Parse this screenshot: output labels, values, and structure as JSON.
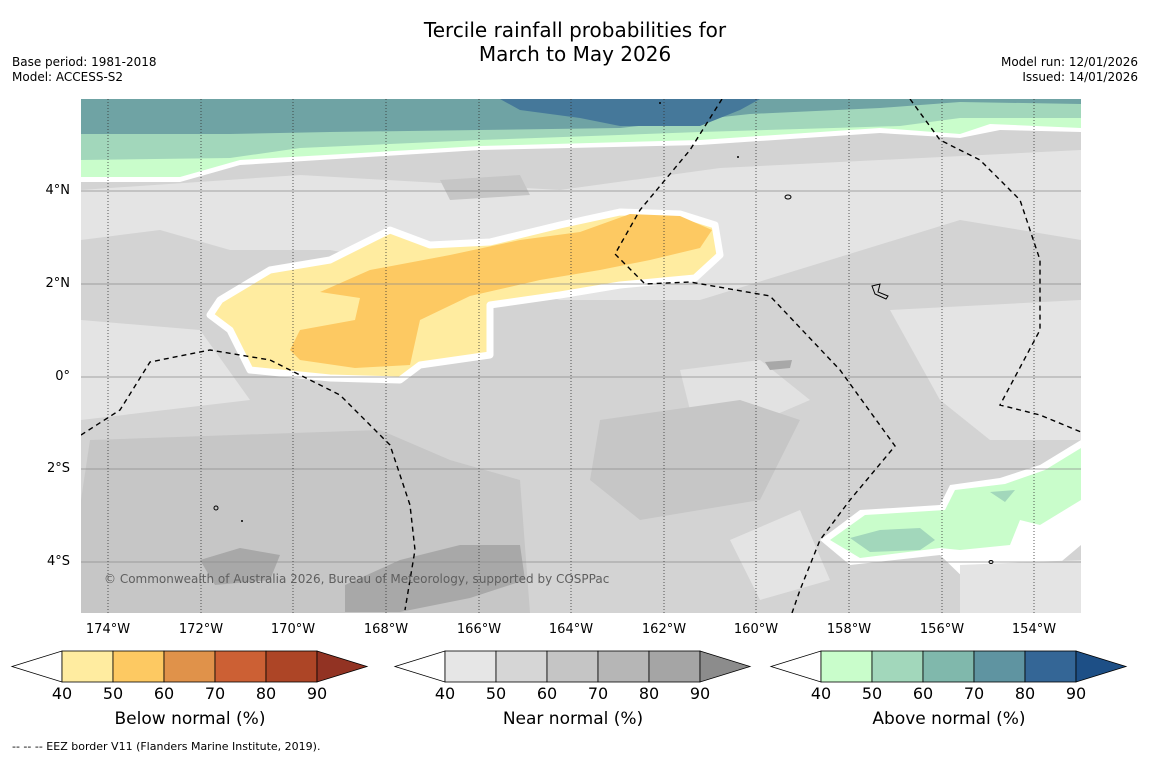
{
  "title": {
    "line1": "Tercile rainfall probabilities for",
    "line2": "March to May 2026"
  },
  "meta": {
    "base_period": "Base period: 1981-2018",
    "model": "Model: ACCESS-S2",
    "model_run": "Model run: 12/01/2026",
    "issued": "Issued: 14/01/2026"
  },
  "map": {
    "lat_labels": [
      "4°N",
      "2°N",
      "0°",
      "2°S",
      "4°S"
    ],
    "lon_labels": [
      "174°W",
      "172°W",
      "170°W",
      "168°W",
      "166°W",
      "164°W",
      "162°W",
      "160°W",
      "158°W",
      "156°W",
      "154°W"
    ],
    "copyright": "© Commonwealth of Australia 2026, Bureau of Meteorology, supported by COSPPac"
  },
  "colorbars": [
    {
      "title": "Below normal (%)",
      "ticks": [
        "40",
        "50",
        "60",
        "70",
        "80",
        "90"
      ],
      "colors": [
        "#ffeca0",
        "#fdc962",
        "#e0924a",
        "#cc6034",
        "#ad4526",
        "#923323"
      ]
    },
    {
      "title": "Near normal (%)",
      "ticks": [
        "40",
        "50",
        "60",
        "70",
        "80",
        "90"
      ],
      "colors": [
        "#e6e6e6",
        "#d6d6d6",
        "#c5c5c5",
        "#b6b6b6",
        "#a5a5a5",
        "#8c8c8c"
      ]
    },
    {
      "title": "Above normal (%)",
      "ticks": [
        "40",
        "50",
        "60",
        "70",
        "80",
        "90"
      ],
      "colors": [
        "#c9fdcb",
        "#a2d7bb",
        "#80b8ac",
        "#5f94a1",
        "#346696",
        "#1d4f86"
      ]
    }
  ],
  "footnote": "--  --  -- EEZ border V11 (Flanders Marine Institute, 2019).",
  "colors": {
    "background_field": "#d3d3d3",
    "graticule": "#8c8c8c",
    "eez_border": "#000000"
  }
}
